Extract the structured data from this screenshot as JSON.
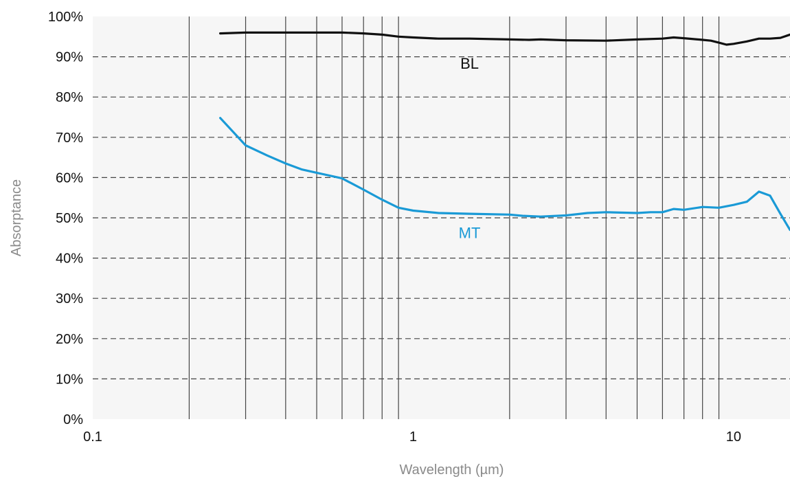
{
  "chart_data": {
    "type": "line",
    "xlabel": "Wavelength (µm)",
    "ylabel": "Absorptance",
    "x_scale": "log",
    "xlim": [
      0.1,
      15
    ],
    "ylim": [
      0,
      100
    ],
    "x_ticks": [
      {
        "value": 0.1,
        "label": "0.1"
      },
      {
        "value": 1,
        "label": "1"
      },
      {
        "value": 10,
        "label": "10"
      }
    ],
    "y_ticks": [
      {
        "value": 0,
        "label": "0%"
      },
      {
        "value": 10,
        "label": "10%"
      },
      {
        "value": 20,
        "label": "20%"
      },
      {
        "value": 30,
        "label": "30%"
      },
      {
        "value": 40,
        "label": "40%"
      },
      {
        "value": 50,
        "label": "50%"
      },
      {
        "value": 60,
        "label": "60%"
      },
      {
        "value": 70,
        "label": "70%"
      },
      {
        "value": 80,
        "label": "80%"
      },
      {
        "value": 90,
        "label": "90%"
      },
      {
        "value": 100,
        "label": "100%"
      }
    ],
    "vertical_gridlines": [
      0.2,
      0.3,
      0.4,
      0.5,
      0.6,
      0.7,
      0.8,
      0.9,
      2,
      3,
      4,
      5,
      6,
      7,
      8,
      9
    ],
    "horizontal_gridlines_dashed": true,
    "series": [
      {
        "name": "BL",
        "color": "#111111",
        "x": [
          0.25,
          0.3,
          0.4,
          0.5,
          0.6,
          0.7,
          0.8,
          0.9,
          1.0,
          1.2,
          1.5,
          2.0,
          2.3,
          2.5,
          3,
          4,
          5,
          6,
          6.5,
          7,
          8,
          8.5,
          9,
          9.5,
          10,
          11,
          12,
          13,
          14,
          15
        ],
        "y": [
          95.8,
          96.0,
          96.0,
          96.0,
          96.0,
          95.8,
          95.5,
          95.0,
          94.8,
          94.5,
          94.5,
          94.3,
          94.2,
          94.3,
          94.1,
          94.0,
          94.3,
          94.5,
          94.8,
          94.6,
          94.2,
          94.0,
          93.5,
          93.0,
          93.2,
          93.8,
          94.5,
          94.5,
          94.7,
          95.5
        ]
      },
      {
        "name": "MT",
        "color": "#1a9ad6",
        "x": [
          0.25,
          0.3,
          0.35,
          0.4,
          0.45,
          0.5,
          0.6,
          0.7,
          0.8,
          0.9,
          1.0,
          1.2,
          1.5,
          2.0,
          2.2,
          2.5,
          3,
          3.5,
          4,
          5,
          5.5,
          6,
          6.5,
          7,
          8,
          9,
          10,
          11,
          12,
          13,
          14,
          15
        ],
        "y": [
          74.8,
          68.0,
          65.5,
          63.5,
          62.0,
          61.2,
          59.8,
          57.0,
          54.5,
          52.5,
          51.8,
          51.2,
          51.0,
          50.8,
          50.5,
          50.3,
          50.6,
          51.2,
          51.4,
          51.2,
          51.4,
          51.4,
          52.2,
          52.0,
          52.7,
          52.5,
          53.2,
          54.0,
          56.5,
          55.5,
          51.0,
          47.0
        ]
      }
    ],
    "annotations": [
      {
        "text": "BL",
        "x": 1.5,
        "y": 87,
        "color": "#111111"
      },
      {
        "text": "MT",
        "x": 1.5,
        "y": 45,
        "color": "#1a9ad6"
      }
    ],
    "plot_background": "#f6f6f6",
    "grid_color": "#444444"
  }
}
